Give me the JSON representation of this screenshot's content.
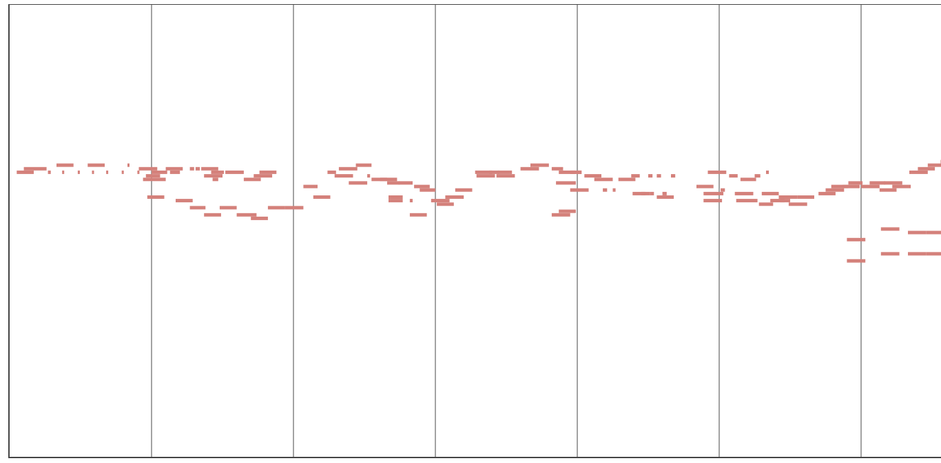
{
  "piano_roll": {
    "note_color": "#d4817b",
    "gridline_color": "#444444",
    "background_color": "#ffffff",
    "measures": 6.6,
    "pitch_range": [
      0,
      64
    ],
    "notes": [
      [
        0.05,
        0.17,
        27
      ],
      [
        0.1,
        0.26,
        28
      ],
      [
        0.33,
        0.45,
        29
      ],
      [
        0.55,
        0.67,
        29
      ],
      [
        0.83,
        0.84,
        29
      ],
      [
        0.27,
        0.29,
        27
      ],
      [
        0.37,
        0.38,
        27
      ],
      [
        0.48,
        0.49,
        27
      ],
      [
        0.58,
        0.59,
        27
      ],
      [
        0.68,
        0.69,
        27
      ],
      [
        0.79,
        0.8,
        27
      ],
      [
        0.9,
        0.91,
        27
      ],
      [
        0.91,
        1.04,
        28
      ],
      [
        0.96,
        1.06,
        26
      ],
      [
        0.94,
        1.1,
        25
      ],
      [
        1.0,
        1.11,
        27
      ],
      [
        1.1,
        1.22,
        28
      ],
      [
        1.13,
        1.2,
        27
      ],
      [
        1.27,
        1.3,
        28
      ],
      [
        1.31,
        1.34,
        28
      ],
      [
        1.35,
        1.47,
        28
      ],
      [
        1.42,
        1.51,
        27
      ],
      [
        1.37,
        1.5,
        26
      ],
      [
        1.52,
        1.65,
        27
      ],
      [
        1.65,
        1.77,
        25
      ],
      [
        1.72,
        1.85,
        26
      ],
      [
        1.76,
        1.88,
        27
      ],
      [
        1.43,
        1.47,
        25
      ],
      [
        0.97,
        1.09,
        20
      ],
      [
        1.17,
        1.29,
        19
      ],
      [
        1.27,
        1.38,
        17
      ],
      [
        1.48,
        1.6,
        17
      ],
      [
        1.37,
        1.49,
        15
      ],
      [
        1.6,
        1.74,
        15
      ],
      [
        1.7,
        1.82,
        14
      ],
      [
        1.82,
        1.94,
        17
      ],
      [
        1.94,
        2.07,
        17
      ],
      [
        2.07,
        2.17,
        23
      ],
      [
        2.14,
        2.26,
        20
      ],
      [
        2.24,
        2.3,
        27
      ],
      [
        2.29,
        2.42,
        26
      ],
      [
        2.32,
        2.45,
        28
      ],
      [
        2.39,
        2.52,
        24
      ],
      [
        2.44,
        2.55,
        29
      ],
      [
        2.52,
        2.54,
        26
      ],
      [
        2.55,
        2.66,
        25
      ],
      [
        2.61,
        2.73,
        25
      ],
      [
        2.66,
        2.75,
        24
      ],
      [
        2.74,
        2.84,
        24
      ],
      [
        2.67,
        2.77,
        20
      ],
      [
        2.67,
        2.77,
        19
      ],
      [
        2.82,
        2.84,
        19
      ],
      [
        2.82,
        2.94,
        15
      ],
      [
        2.85,
        2.96,
        23
      ],
      [
        2.89,
        3.0,
        22
      ],
      [
        2.97,
        3.1,
        19
      ],
      [
        3.01,
        3.13,
        18
      ],
      [
        3.07,
        3.2,
        20
      ],
      [
        3.14,
        3.26,
        22
      ],
      [
        3.28,
        3.4,
        27
      ],
      [
        3.29,
        3.42,
        26
      ],
      [
        3.38,
        3.45,
        27
      ],
      [
        3.44,
        3.54,
        27
      ],
      [
        3.43,
        3.56,
        26
      ],
      [
        3.6,
        3.73,
        28
      ],
      [
        3.67,
        3.8,
        29
      ],
      [
        3.82,
        3.9,
        28
      ],
      [
        3.87,
        3.99,
        27
      ],
      [
        3.85,
        3.99,
        24
      ],
      [
        3.95,
        4.03,
        27
      ],
      [
        4.0,
        4.03,
        27
      ],
      [
        3.87,
        3.99,
        16
      ],
      [
        3.82,
        3.95,
        15
      ],
      [
        3.95,
        4.08,
        22
      ],
      [
        4.12,
        4.25,
        25
      ],
      [
        4.05,
        4.17,
        26
      ],
      [
        4.29,
        4.41,
        25
      ],
      [
        4.18,
        4.21,
        22
      ],
      [
        4.25,
        4.27,
        22
      ],
      [
        4.39,
        4.51,
        21
      ],
      [
        4.45,
        4.48,
        21
      ],
      [
        4.51,
        4.54,
        21
      ],
      [
        4.6,
        4.63,
        21
      ],
      [
        4.38,
        4.44,
        26
      ],
      [
        4.5,
        4.53,
        26
      ],
      [
        4.56,
        4.59,
        26
      ],
      [
        4.66,
        4.69,
        26
      ],
      [
        4.56,
        4.68,
        20
      ],
      [
        4.84,
        4.96,
        23
      ],
      [
        4.89,
        5.03,
        21
      ],
      [
        4.89,
        5.02,
        19
      ],
      [
        4.92,
        5.05,
        27
      ],
      [
        5.01,
        5.04,
        22
      ],
      [
        5.11,
        5.24,
        21
      ],
      [
        5.07,
        5.13,
        26
      ],
      [
        5.15,
        5.26,
        25
      ],
      [
        5.25,
        5.29,
        26
      ],
      [
        5.33,
        5.35,
        27
      ],
      [
        5.12,
        5.27,
        19
      ],
      [
        5.3,
        5.42,
        21
      ],
      [
        5.28,
        5.38,
        18
      ],
      [
        5.36,
        5.46,
        19
      ],
      [
        5.42,
        5.55,
        20
      ],
      [
        5.43,
        5.5,
        19
      ],
      [
        5.55,
        5.67,
        20
      ],
      [
        5.49,
        5.62,
        18
      ],
      [
        5.7,
        5.82,
        21
      ],
      [
        5.75,
        5.88,
        22
      ],
      [
        5.79,
        5.91,
        23
      ],
      [
        5.87,
        5.99,
        23
      ],
      [
        5.91,
        6.01,
        24
      ],
      [
        6.0,
        6.13,
        23
      ],
      [
        6.06,
        6.17,
        24
      ],
      [
        6.13,
        6.25,
        22
      ],
      [
        6.16,
        6.29,
        24
      ],
      [
        6.22,
        6.35,
        23
      ],
      [
        6.34,
        6.47,
        27
      ],
      [
        6.4,
        6.52,
        28
      ],
      [
        6.47,
        6.6,
        29
      ],
      [
        6.56,
        6.6,
        30
      ],
      [
        5.9,
        6.03,
        8
      ],
      [
        5.9,
        6.03,
        2
      ],
      [
        6.14,
        6.27,
        11
      ],
      [
        6.14,
        6.27,
        4
      ],
      [
        6.33,
        6.46,
        10
      ],
      [
        6.33,
        6.46,
        4
      ],
      [
        6.46,
        6.6,
        10
      ],
      [
        6.46,
        6.6,
        4
      ]
    ]
  }
}
